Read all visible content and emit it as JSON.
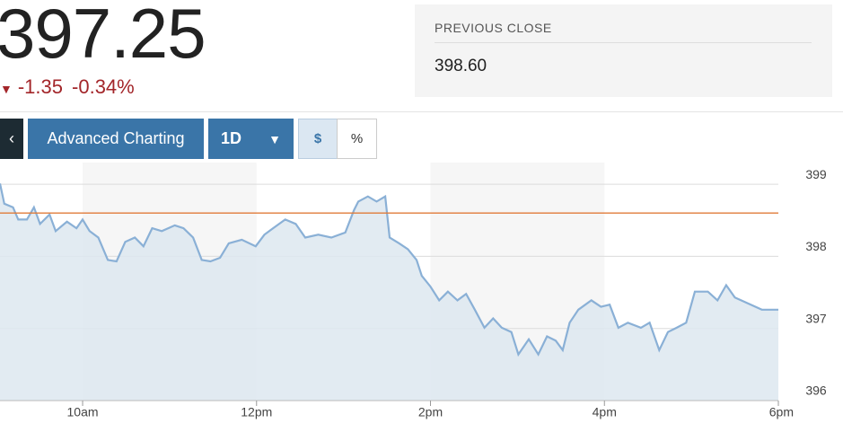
{
  "header": {
    "price": "397.25",
    "change": "-1.35",
    "change_percent": "-0.34%"
  },
  "previous_close": {
    "label": "PREVIOUS CLOSE",
    "value": "398.60"
  },
  "toolbar": {
    "advanced": "Advanced Charting",
    "range": "1D",
    "dollar": "$",
    "percent": "%"
  },
  "chart_data": {
    "type": "area",
    "x": [
      9.05,
      9.1,
      9.2,
      9.26,
      9.36,
      9.44,
      9.51,
      9.62,
      9.69,
      9.82,
      9.93,
      10.0,
      10.08,
      10.18,
      10.29,
      10.39,
      10.49,
      10.6,
      10.7,
      10.8,
      10.91,
      11.06,
      11.16,
      11.27,
      11.37,
      11.47,
      11.58,
      11.68,
      11.83,
      11.99,
      12.09,
      12.19,
      12.33,
      12.45,
      12.56,
      12.71,
      12.86,
      13.02,
      13.12,
      13.17,
      13.28,
      13.38,
      13.48,
      13.53,
      13.64,
      13.74,
      13.84,
      13.9,
      14.0,
      14.1,
      14.2,
      14.31,
      14.41,
      14.51,
      14.62,
      14.72,
      14.82,
      14.93,
      15.01,
      15.13,
      15.24,
      15.34,
      15.44,
      15.52,
      15.6,
      15.7,
      15.85,
      15.96,
      16.06,
      16.16,
      16.27,
      16.42,
      16.52,
      16.63,
      16.73,
      16.83,
      16.94,
      17.04,
      17.19,
      17.3,
      17.4,
      17.5,
      17.81,
      18.0
    ],
    "series": [
      {
        "color": "#8ab0d6",
        "fill": "#dde7f0",
        "values": [
          399.01,
          398.73,
          398.68,
          398.51,
          398.51,
          398.68,
          398.45,
          398.58,
          398.35,
          398.48,
          398.39,
          398.51,
          398.35,
          398.26,
          397.95,
          397.93,
          398.2,
          398.26,
          398.14,
          398.39,
          398.35,
          398.43,
          398.39,
          398.26,
          397.95,
          397.93,
          397.98,
          398.18,
          398.23,
          398.14,
          398.3,
          398.39,
          398.51,
          398.45,
          398.26,
          398.3,
          398.26,
          398.33,
          398.64,
          398.76,
          398.83,
          398.76,
          398.83,
          398.26,
          398.18,
          398.1,
          397.95,
          397.73,
          397.58,
          397.39,
          397.51,
          397.39,
          397.48,
          397.26,
          397.01,
          397.14,
          397.01,
          396.95,
          396.64,
          396.85,
          396.64,
          396.89,
          396.83,
          396.7,
          397.08,
          397.26,
          397.39,
          397.3,
          397.33,
          397.01,
          397.08,
          397.01,
          397.08,
          396.7,
          396.95,
          397.01,
          397.08,
          397.51,
          397.51,
          397.39,
          397.6,
          397.43,
          397.26,
          397.26
        ]
      }
    ],
    "reference_line": {
      "value": 398.6,
      "color": "#e07b39"
    },
    "xlim": [
      9.05,
      18
    ],
    "xticks": [
      {
        "value": 10,
        "label": "10am"
      },
      {
        "value": 12,
        "label": "12pm"
      },
      {
        "value": 14,
        "label": "2pm"
      },
      {
        "value": 16,
        "label": "4pm"
      },
      {
        "value": 18,
        "label": "6pm"
      }
    ],
    "ylim": [
      396,
      399.3
    ],
    "yticks": [
      396,
      397,
      398,
      399
    ],
    "grid": true
  }
}
